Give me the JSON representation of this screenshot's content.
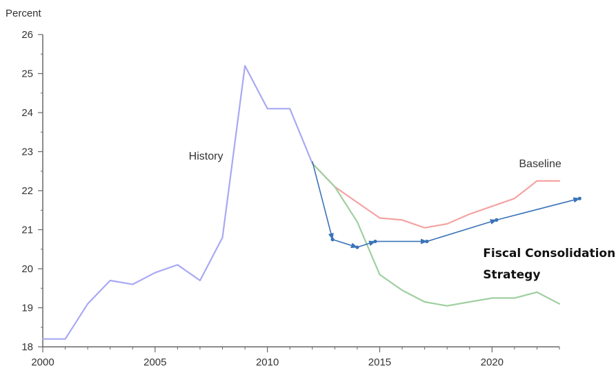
{
  "chart_data": {
    "type": "line",
    "title": "",
    "ylabel": "Percent",
    "xlabel": "",
    "xlim": [
      2000,
      2023
    ],
    "ylim": [
      18,
      26
    ],
    "x_ticks": [
      2000,
      2005,
      2010,
      2015,
      2020
    ],
    "y_ticks": [
      18,
      19,
      20,
      21,
      22,
      23,
      24,
      25,
      26
    ],
    "grid": false,
    "series": [
      {
        "color": "#a8a8f4",
        "x": [
          2000,
          2001,
          2002,
          2003,
          2004,
          2005,
          2006,
          2007,
          2008,
          2009,
          2010,
          2011,
          2012
        ],
        "y": [
          18.2,
          18.2,
          19.1,
          19.7,
          19.6,
          19.9,
          20.1,
          19.7,
          20.8,
          25.2,
          24.1,
          24.1,
          22.7
        ]
      },
      {
        "color": "#f4a3a3",
        "x": [
          2012,
          2013,
          2014,
          2015,
          2016,
          2017,
          2018,
          2019,
          2020,
          2021,
          2022,
          2023
        ],
        "y": [
          22.7,
          22.1,
          21.7,
          21.3,
          21.25,
          21.05,
          21.15,
          21.4,
          21.6,
          21.8,
          22.25,
          22.25
        ]
      },
      {
        "color": "#9fcf9f",
        "x": [
          2012,
          2013,
          2014,
          2015,
          2016,
          2017,
          2018,
          2019,
          2020,
          2021,
          2022,
          2023
        ],
        "y": [
          22.7,
          22.1,
          21.2,
          19.85,
          19.45,
          19.15,
          19.05,
          19.15,
          19.25,
          19.25,
          19.4,
          19.1
        ]
      }
    ],
    "arrow_path": {
      "color": "#3a73b8",
      "points": [
        {
          "x": 2012,
          "y": 22.75
        },
        {
          "x": 2012.9,
          "y": 20.75
        },
        {
          "x": 2014.0,
          "y": 20.55
        },
        {
          "x": 2014.8,
          "y": 20.7
        },
        {
          "x": 2017.1,
          "y": 20.7
        },
        {
          "x": 2020.2,
          "y": 21.25
        },
        {
          "x": 2023.9,
          "y": 21.8
        }
      ]
    },
    "annotations": [
      {
        "text": "History",
        "x": 2006.5,
        "y": 22.8,
        "style": "plain"
      },
      {
        "text": "Baseline",
        "x": 2021.2,
        "y": 22.6,
        "style": "plain"
      },
      {
        "text": "Fiscal Consolidation",
        "x": 2019.6,
        "y": 20.3,
        "style": "bold"
      },
      {
        "text": "Strategy",
        "x": 2019.6,
        "y": 19.75,
        "style": "bold"
      }
    ]
  }
}
